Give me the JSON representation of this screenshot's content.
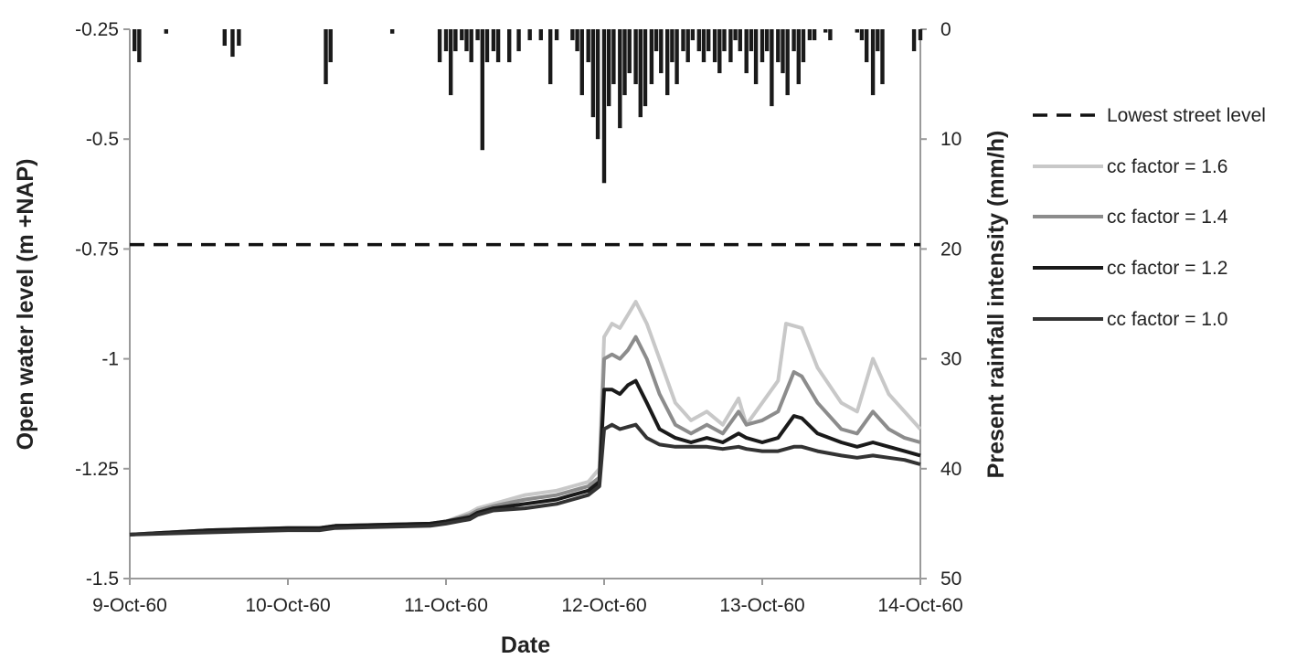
{
  "chart_data": {
    "type": "line",
    "xlabel": "Date",
    "ylabel": "Open water level (m +NAP)",
    "y2label": "Present rainfall intensity (mm/h)",
    "x_ticks": [
      "9-Oct-60",
      "10-Oct-60",
      "11-Oct-60",
      "12-Oct-60",
      "13-Oct-60",
      "14-Oct-60"
    ],
    "xlim": [
      "9-Oct-60",
      "14-Oct-60"
    ],
    "ylim": [
      -1.5,
      -0.25
    ],
    "y_ticks": [
      -1.5,
      -1.25,
      -1,
      -0.75,
      -0.5,
      -0.25
    ],
    "y_tick_labels": [
      "-1.5",
      "-1.25",
      "-1",
      "-0.75",
      "-0.5",
      "-0.25"
    ],
    "y2lim": [
      50,
      0
    ],
    "y2_ticks": [
      0,
      10,
      20,
      30,
      40,
      50
    ],
    "y2_tick_labels": [
      "0",
      "10",
      "20",
      "30",
      "40",
      "50"
    ],
    "legend_position": "right",
    "series": [
      {
        "name": "Lowest street level",
        "style": "dashed",
        "color": "#111111",
        "points": [
          [
            0,
            -0.74
          ],
          [
            5,
            -0.74
          ]
        ]
      },
      {
        "name": "cc factor = 1.6",
        "style": "solid",
        "color": "#c8c8c8",
        "points": [
          [
            0,
            -1.4
          ],
          [
            0.5,
            -1.39
          ],
          [
            1.0,
            -1.385
          ],
          [
            1.2,
            -1.385
          ],
          [
            1.3,
            -1.38
          ],
          [
            1.9,
            -1.375
          ],
          [
            2.0,
            -1.37
          ],
          [
            2.15,
            -1.35
          ],
          [
            2.2,
            -1.34
          ],
          [
            2.3,
            -1.33
          ],
          [
            2.5,
            -1.31
          ],
          [
            2.7,
            -1.3
          ],
          [
            2.8,
            -1.29
          ],
          [
            2.9,
            -1.28
          ],
          [
            2.97,
            -1.25
          ],
          [
            3.0,
            -0.95
          ],
          [
            3.05,
            -0.92
          ],
          [
            3.1,
            -0.93
          ],
          [
            3.15,
            -0.9
          ],
          [
            3.2,
            -0.87
          ],
          [
            3.27,
            -0.92
          ],
          [
            3.35,
            -1.0
          ],
          [
            3.45,
            -1.1
          ],
          [
            3.55,
            -1.14
          ],
          [
            3.65,
            -1.12
          ],
          [
            3.75,
            -1.15
          ],
          [
            3.85,
            -1.09
          ],
          [
            3.9,
            -1.15
          ],
          [
            4.0,
            -1.1
          ],
          [
            4.1,
            -1.05
          ],
          [
            4.15,
            -0.92
          ],
          [
            4.25,
            -0.93
          ],
          [
            4.35,
            -1.02
          ],
          [
            4.5,
            -1.1
          ],
          [
            4.6,
            -1.12
          ],
          [
            4.7,
            -1.0
          ],
          [
            4.8,
            -1.08
          ],
          [
            4.9,
            -1.12
          ],
          [
            5.0,
            -1.16
          ]
        ]
      },
      {
        "name": "cc factor = 1.4",
        "style": "solid",
        "color": "#8c8c8c",
        "points": [
          [
            0,
            -1.4
          ],
          [
            0.5,
            -1.39
          ],
          [
            1.0,
            -1.385
          ],
          [
            1.2,
            -1.385
          ],
          [
            1.3,
            -1.38
          ],
          [
            1.9,
            -1.375
          ],
          [
            2.0,
            -1.37
          ],
          [
            2.15,
            -1.355
          ],
          [
            2.2,
            -1.345
          ],
          [
            2.3,
            -1.335
          ],
          [
            2.5,
            -1.32
          ],
          [
            2.7,
            -1.31
          ],
          [
            2.8,
            -1.3
          ],
          [
            2.9,
            -1.29
          ],
          [
            2.97,
            -1.27
          ],
          [
            3.0,
            -1.0
          ],
          [
            3.05,
            -0.99
          ],
          [
            3.1,
            -1.0
          ],
          [
            3.15,
            -0.98
          ],
          [
            3.2,
            -0.95
          ],
          [
            3.27,
            -1.0
          ],
          [
            3.35,
            -1.08
          ],
          [
            3.45,
            -1.15
          ],
          [
            3.55,
            -1.17
          ],
          [
            3.65,
            -1.15
          ],
          [
            3.75,
            -1.17
          ],
          [
            3.85,
            -1.12
          ],
          [
            3.9,
            -1.15
          ],
          [
            4.0,
            -1.14
          ],
          [
            4.1,
            -1.12
          ],
          [
            4.2,
            -1.03
          ],
          [
            4.25,
            -1.04
          ],
          [
            4.35,
            -1.1
          ],
          [
            4.5,
            -1.16
          ],
          [
            4.6,
            -1.17
          ],
          [
            4.7,
            -1.12
          ],
          [
            4.8,
            -1.16
          ],
          [
            4.9,
            -1.18
          ],
          [
            5.0,
            -1.19
          ]
        ]
      },
      {
        "name": "cc factor = 1.2",
        "style": "solid",
        "color": "#1a1a1a",
        "points": [
          [
            0,
            -1.4
          ],
          [
            0.5,
            -1.39
          ],
          [
            1.0,
            -1.385
          ],
          [
            1.2,
            -1.385
          ],
          [
            1.3,
            -1.38
          ],
          [
            1.9,
            -1.375
          ],
          [
            2.0,
            -1.37
          ],
          [
            2.15,
            -1.36
          ],
          [
            2.2,
            -1.35
          ],
          [
            2.3,
            -1.34
          ],
          [
            2.5,
            -1.33
          ],
          [
            2.7,
            -1.32
          ],
          [
            2.8,
            -1.31
          ],
          [
            2.9,
            -1.3
          ],
          [
            2.97,
            -1.28
          ],
          [
            3.0,
            -1.07
          ],
          [
            3.05,
            -1.07
          ],
          [
            3.1,
            -1.08
          ],
          [
            3.15,
            -1.06
          ],
          [
            3.2,
            -1.05
          ],
          [
            3.27,
            -1.1
          ],
          [
            3.35,
            -1.16
          ],
          [
            3.45,
            -1.18
          ],
          [
            3.55,
            -1.19
          ],
          [
            3.65,
            -1.18
          ],
          [
            3.75,
            -1.19
          ],
          [
            3.85,
            -1.17
          ],
          [
            3.9,
            -1.18
          ],
          [
            4.0,
            -1.19
          ],
          [
            4.1,
            -1.18
          ],
          [
            4.2,
            -1.13
          ],
          [
            4.25,
            -1.135
          ],
          [
            4.35,
            -1.17
          ],
          [
            4.5,
            -1.19
          ],
          [
            4.6,
            -1.2
          ],
          [
            4.7,
            -1.19
          ],
          [
            4.8,
            -1.2
          ],
          [
            4.9,
            -1.21
          ],
          [
            5.0,
            -1.22
          ]
        ]
      },
      {
        "name": "cc factor = 1.0",
        "style": "solid",
        "color": "#333333",
        "points": [
          [
            0,
            -1.4
          ],
          [
            0.5,
            -1.395
          ],
          [
            1.0,
            -1.39
          ],
          [
            1.2,
            -1.39
          ],
          [
            1.3,
            -1.385
          ],
          [
            1.9,
            -1.38
          ],
          [
            2.0,
            -1.375
          ],
          [
            2.15,
            -1.365
          ],
          [
            2.2,
            -1.355
          ],
          [
            2.3,
            -1.345
          ],
          [
            2.5,
            -1.34
          ],
          [
            2.7,
            -1.33
          ],
          [
            2.8,
            -1.32
          ],
          [
            2.9,
            -1.31
          ],
          [
            2.97,
            -1.29
          ],
          [
            3.0,
            -1.16
          ],
          [
            3.05,
            -1.15
          ],
          [
            3.1,
            -1.16
          ],
          [
            3.15,
            -1.155
          ],
          [
            3.2,
            -1.15
          ],
          [
            3.27,
            -1.18
          ],
          [
            3.35,
            -1.195
          ],
          [
            3.45,
            -1.2
          ],
          [
            3.55,
            -1.2
          ],
          [
            3.65,
            -1.2
          ],
          [
            3.75,
            -1.205
          ],
          [
            3.85,
            -1.2
          ],
          [
            3.9,
            -1.205
          ],
          [
            4.0,
            -1.21
          ],
          [
            4.1,
            -1.21
          ],
          [
            4.2,
            -1.2
          ],
          [
            4.25,
            -1.2
          ],
          [
            4.35,
            -1.21
          ],
          [
            4.5,
            -1.22
          ],
          [
            4.6,
            -1.225
          ],
          [
            4.7,
            -1.22
          ],
          [
            4.8,
            -1.225
          ],
          [
            4.9,
            -1.23
          ],
          [
            5.0,
            -1.24
          ]
        ]
      }
    ],
    "rainfall": {
      "name": "Present rainfall intensity",
      "color": "#1a1a1a",
      "bars": [
        [
          0.03,
          2
        ],
        [
          0.06,
          3
        ],
        [
          0.23,
          0.4
        ],
        [
          0.6,
          1.5
        ],
        [
          0.65,
          2.5
        ],
        [
          0.69,
          1.5
        ],
        [
          1.24,
          5
        ],
        [
          1.27,
          3
        ],
        [
          1.66,
          0.4
        ],
        [
          1.96,
          3
        ],
        [
          2.0,
          2
        ],
        [
          2.03,
          6
        ],
        [
          2.06,
          2
        ],
        [
          2.1,
          1
        ],
        [
          2.13,
          2
        ],
        [
          2.16,
          3
        ],
        [
          2.2,
          1
        ],
        [
          2.23,
          11
        ],
        [
          2.26,
          3
        ],
        [
          2.3,
          2
        ],
        [
          2.33,
          3
        ],
        [
          2.4,
          3
        ],
        [
          2.46,
          2
        ],
        [
          2.53,
          1
        ],
        [
          2.6,
          1
        ],
        [
          2.66,
          5
        ],
        [
          2.7,
          1
        ],
        [
          2.8,
          1
        ],
        [
          2.83,
          2
        ],
        [
          2.86,
          6
        ],
        [
          2.9,
          3
        ],
        [
          2.93,
          8
        ],
        [
          2.96,
          10
        ],
        [
          3.0,
          14
        ],
        [
          3.03,
          7
        ],
        [
          3.06,
          5
        ],
        [
          3.1,
          9
        ],
        [
          3.13,
          6
        ],
        [
          3.16,
          4
        ],
        [
          3.2,
          5
        ],
        [
          3.23,
          8
        ],
        [
          3.26,
          7
        ],
        [
          3.3,
          5
        ],
        [
          3.33,
          2
        ],
        [
          3.36,
          4
        ],
        [
          3.4,
          6
        ],
        [
          3.43,
          3
        ],
        [
          3.46,
          5
        ],
        [
          3.5,
          2
        ],
        [
          3.53,
          3
        ],
        [
          3.56,
          1
        ],
        [
          3.6,
          2
        ],
        [
          3.63,
          3
        ],
        [
          3.66,
          2
        ],
        [
          3.7,
          3
        ],
        [
          3.73,
          4
        ],
        [
          3.76,
          2
        ],
        [
          3.8,
          3
        ],
        [
          3.83,
          1
        ],
        [
          3.86,
          2
        ],
        [
          3.9,
          4
        ],
        [
          3.93,
          2
        ],
        [
          3.96,
          5
        ],
        [
          4.0,
          3
        ],
        [
          4.03,
          2
        ],
        [
          4.06,
          7
        ],
        [
          4.1,
          3
        ],
        [
          4.13,
          4
        ],
        [
          4.16,
          6
        ],
        [
          4.2,
          2
        ],
        [
          4.23,
          5
        ],
        [
          4.26,
          3
        ],
        [
          4.3,
          1
        ],
        [
          4.33,
          1
        ],
        [
          4.4,
          0.3
        ],
        [
          4.43,
          1
        ],
        [
          4.6,
          0.3
        ],
        [
          4.63,
          1
        ],
        [
          4.66,
          3
        ],
        [
          4.7,
          6
        ],
        [
          4.73,
          2
        ],
        [
          4.76,
          5
        ],
        [
          4.96,
          2
        ],
        [
          5.0,
          1
        ]
      ]
    }
  }
}
